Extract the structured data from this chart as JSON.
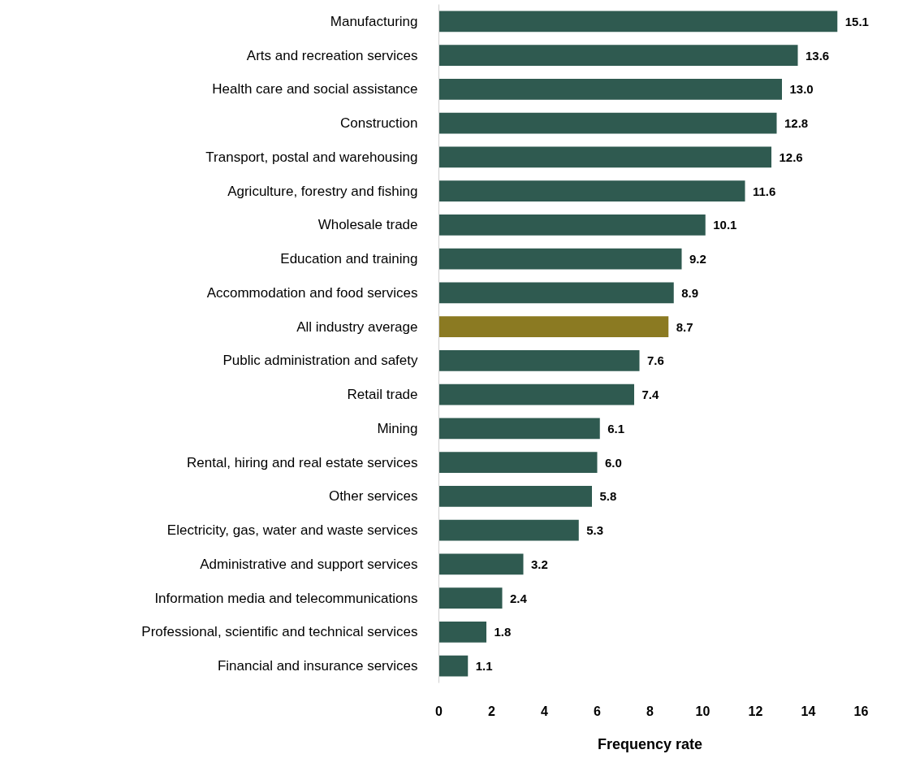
{
  "chart_data": {
    "type": "bar",
    "orientation": "horizontal",
    "xlabel": "Frequency rate",
    "categories": [
      "Manufacturing",
      "Arts and recreation services",
      "Health care and social assistance",
      "Construction",
      "Transport, postal and warehousing",
      "Agriculture, forestry and fishing",
      "Wholesale trade",
      "Education and training",
      "Accommodation and food services",
      "All industry average",
      "Public administration and safety",
      "Retail trade",
      "Mining",
      "Rental, hiring and real estate services",
      "Other services",
      "Electricity, gas, water and waste services",
      "Administrative and support services",
      "Information media and telecommunications",
      "Professional, scientific and technical services",
      "Financial and insurance services"
    ],
    "values": [
      15.1,
      13.6,
      13.0,
      12.8,
      12.6,
      11.6,
      10.1,
      9.2,
      8.9,
      8.7,
      7.6,
      7.4,
      6.1,
      6.0,
      5.8,
      5.3,
      3.2,
      2.4,
      1.8,
      1.1
    ],
    "colors": [
      "#2f5a50",
      "#2f5a50",
      "#2f5a50",
      "#2f5a50",
      "#2f5a50",
      "#2f5a50",
      "#2f5a50",
      "#2f5a50",
      "#2f5a50",
      "#8b7a22",
      "#2f5a50",
      "#2f5a50",
      "#2f5a50",
      "#2f5a50",
      "#2f5a50",
      "#2f5a50",
      "#2f5a50",
      "#2f5a50",
      "#2f5a50",
      "#2f5a50"
    ],
    "value_labels": [
      "15.1",
      "13.6",
      "13.0",
      "12.8",
      "12.6",
      "11.6",
      "10.1",
      "9.2",
      "8.9",
      "8.7",
      "7.6",
      "7.4",
      "6.1",
      "6.0",
      "5.8",
      "5.3",
      "3.2",
      "2.4",
      "1.8",
      "1.1"
    ],
    "xlim": [
      0,
      16
    ],
    "xticks": [
      0,
      2,
      4,
      6,
      8,
      10,
      12,
      14,
      16
    ],
    "grid": false
  }
}
